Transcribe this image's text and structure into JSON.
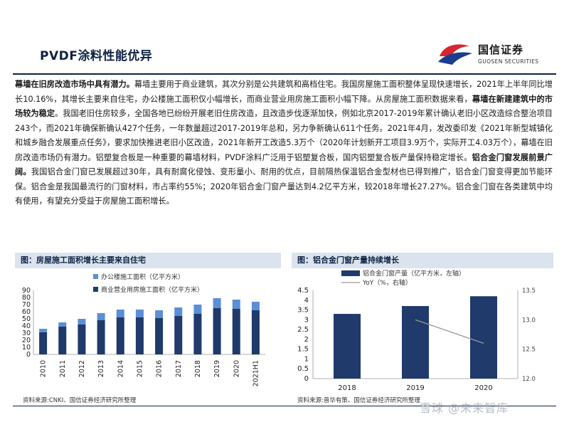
{
  "page": {
    "title": "PVDF涂料性能优异",
    "logo": {
      "cn": "国信证券",
      "en": "GUOSEN SECURITIES",
      "red": "#d7262d",
      "blue": "#1b3d8f"
    },
    "accent": "#0e2244",
    "paragraph": [
      {
        "t": "幕墙在旧房改造市场中具有潜力。",
        "b": true
      },
      {
        "t": "幕墙主要用于商业建筑，其次分别是公共建筑和高档住宅。我国房屋施工面积整体呈现快速增长，2021年上半年同比增长10.16%，其增长主要来自住宅，办公楼施工面积仅小幅增长，而商业营业用房施工面积小幅下降。从房屋施工面积数据来看，",
        "b": false
      },
      {
        "t": "幕墙在新建建筑中的市场较为稳定",
        "b": true
      },
      {
        "t": "。我国老旧住房较多，全国各地已纷纷开展老旧住房改造，且改造步伐逐渐加快，例如北京2017-2019年累计确认老旧小区改造综合整治项目243个，而2021年确保新确认427个任务，一年数量超过2017-2019年总和，另力争新确认611个任务。2021年4月，发改委印发《2021年新型城镇化和城乡融合发展重点任务》，要求加快推进老旧小区改造，2021年新开工改造5.3万个（2020年计划新开工项目3.9万个，实际开工4.03万个），幕墙在旧房改造市场仍有潜力。铝塑复合板是一种重要的幕墙材料，PVDF涂料广泛用于铝塑复合板，国内铝塑复合板产量保持稳定增长。",
        "b": false
      },
      {
        "t": "铝合金门窗发展前景广阔。",
        "b": true
      },
      {
        "t": "我国铝合金门窗已发展超过30年，具有耐腐化侵蚀、变形量小、耐用的优点，目前隔热保温铝合金型材也已得到推广，铝合金门窗变得更加节能环保。铝合金是我国最流行的门窗材料，市占率约55%；2020年铝合金门窗产量达到4.2亿平方米，较2018年增长27.27%。铝合金门窗在各类建筑中均有使用，有望充分受益于房屋施工面积增长。",
        "b": false
      }
    ],
    "fig_left_title": "图：房屋施工面积增长主要来自住宅",
    "fig_right_title": "图：铝合金门窗产量持续增长",
    "source_left": "资料来源:CNKI、国信证券经济研究所整理",
    "source_right": "资料来源:普华有策、国信证券经济研究所整理",
    "watermark": "雪球 @未来智库"
  },
  "chart_data": [
    {
      "type": "bar",
      "stacked": true,
      "categories": [
        "2010",
        "2011",
        "2012",
        "2013",
        "2014",
        "2015",
        "2016",
        "2017",
        "2018",
        "2019",
        "2020",
        "2021H1"
      ],
      "series": [
        {
          "name": "商业营业用房施工面积（亿平方米）",
          "color": "#1f3a6b",
          "values": [
            31,
            39,
            42,
            48,
            52,
            52,
            51,
            54,
            57,
            65,
            64,
            62
          ]
        },
        {
          "name": "办公楼施工面积（亿平方米）",
          "color": "#5b8fd6",
          "values": [
            5,
            6,
            8,
            10,
            11,
            11,
            11,
            12,
            13,
            14,
            13,
            12
          ]
        }
      ],
      "ylim": [
        0,
        90
      ],
      "yticks": [
        0,
        10,
        20,
        30,
        40,
        50,
        60,
        70,
        80,
        90
      ],
      "legend": "top"
    },
    {
      "type": "bar",
      "categories": [
        "2018",
        "2019",
        "2020"
      ],
      "series": [
        {
          "name": "铝合金门窗产量（亿平方米，左轴）",
          "color": "#1f3a6b",
          "values": [
            3.3,
            3.7,
            4.2
          ]
        },
        {
          "name": "YoY（%，右轴）",
          "color": "#999999",
          "type": "line",
          "values": [
            null,
            13.0,
            12.6
          ]
        }
      ],
      "ylim": [
        0,
        4.5
      ],
      "yticks": [
        "0",
        "0.5",
        "1",
        "1.5",
        "2",
        "2.5",
        "3",
        "3.5",
        "4",
        "4.5"
      ],
      "y2lim": [
        12.0,
        13.5
      ],
      "y2ticks": [
        "12.0",
        "12.5",
        "13.0",
        "13.5"
      ],
      "legend": "top"
    }
  ]
}
